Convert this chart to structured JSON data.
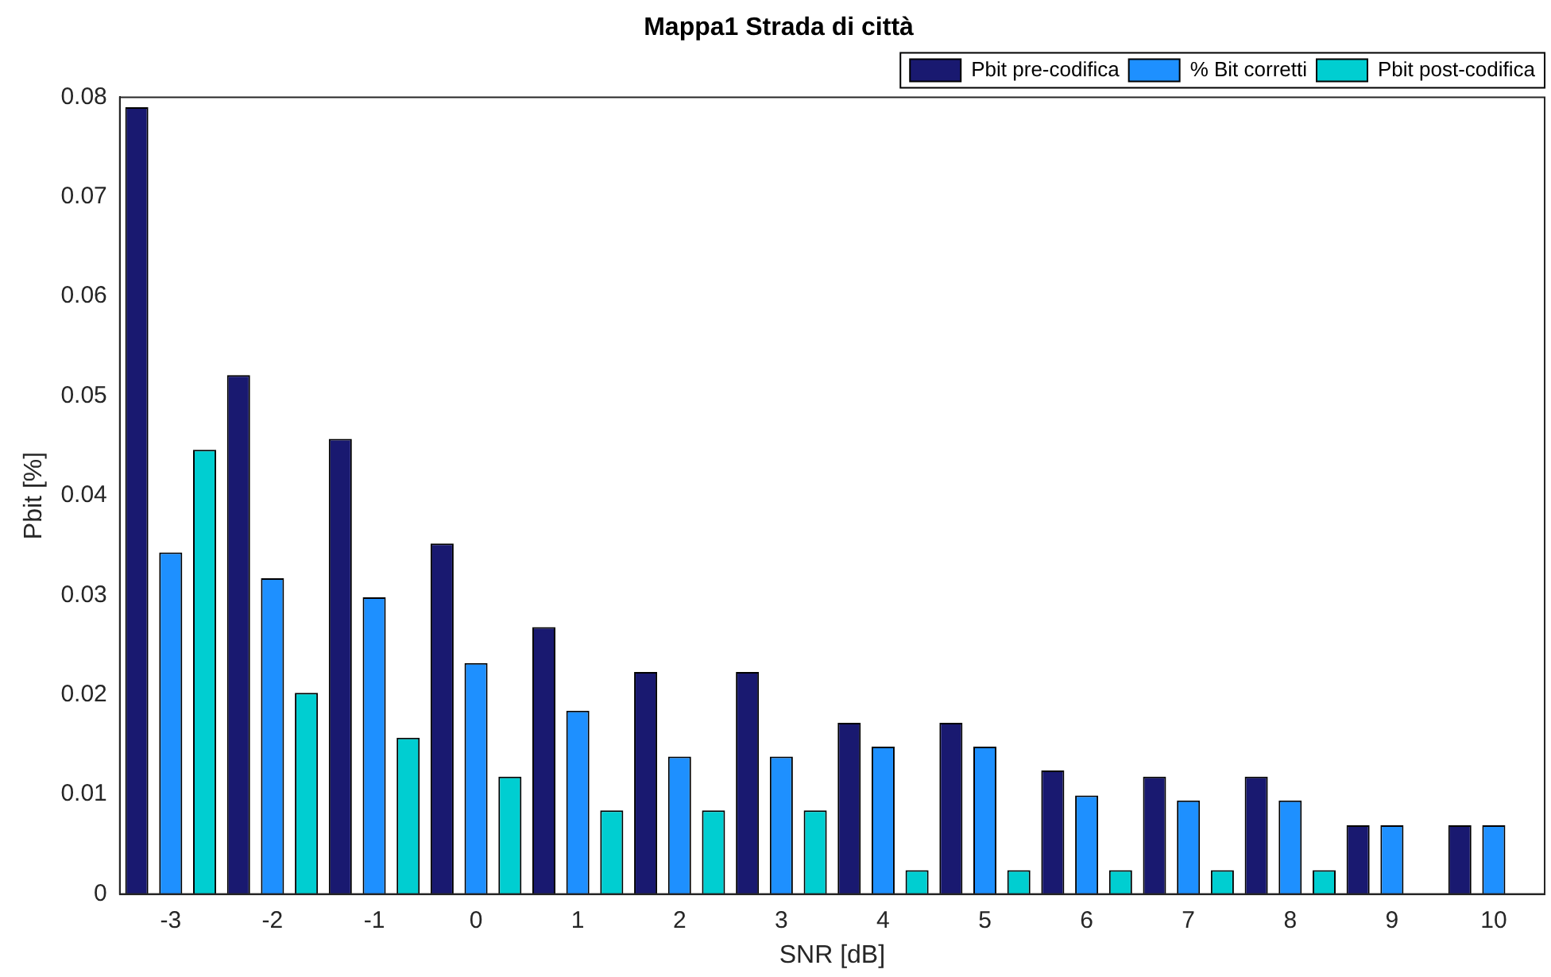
{
  "chart_data": {
    "type": "bar",
    "title": "Mappa1 Strada di città",
    "xlabel": "SNR [dB]",
    "ylabel": "Pbit [%]",
    "categories": [
      "-3",
      "-2",
      "-1",
      "0",
      "1",
      "2",
      "3",
      "4",
      "5",
      "6",
      "7",
      "8",
      "9",
      "10"
    ],
    "series": [
      {
        "name": "Pbit pre-codifica",
        "color": "#191970",
        "values": [
          0.079,
          0.0521,
          0.0457,
          0.0352,
          0.0268,
          0.0223,
          0.0223,
          0.0172,
          0.0172,
          0.0124,
          0.0118,
          0.0118,
          0.0069,
          0.0069
        ]
      },
      {
        "name": "% Bit corretti",
        "color": "#1e90ff",
        "values": [
          0.0343,
          0.0317,
          0.0298,
          0.0232,
          0.0184,
          0.0138,
          0.0138,
          0.0148,
          0.0148,
          0.0099,
          0.0094,
          0.0094,
          0.0069,
          0.0069
        ]
      },
      {
        "name": "Pbit post-codifica",
        "color": "#00ced1",
        "values": [
          0.0446,
          0.0202,
          0.0157,
          0.0118,
          0.0084,
          0.0084,
          0.0084,
          0.0024,
          0.0024,
          0.0024,
          0.0024,
          0.0024,
          0,
          0
        ]
      }
    ],
    "ylim": [
      0,
      0.08
    ],
    "yticks": [
      0,
      0.01,
      0.02,
      0.03,
      0.04,
      0.05,
      0.06,
      0.07,
      0.08
    ],
    "grid": false,
    "legend": "top right"
  }
}
